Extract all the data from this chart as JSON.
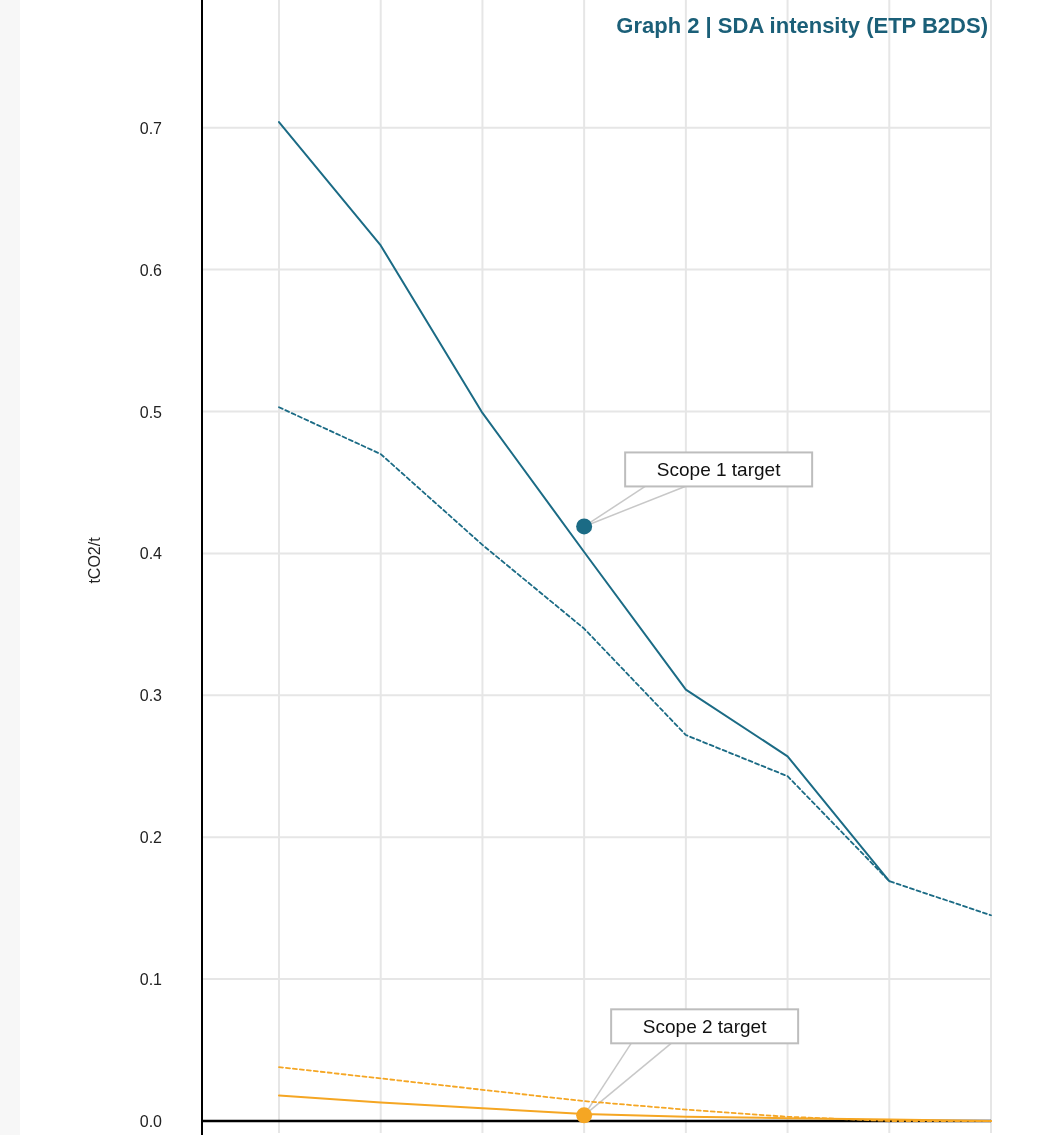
{
  "chart_data": {
    "type": "line",
    "title": "Graph 2 | SDA intensity (ETP B2DS)",
    "ylabel": "tCO2/t",
    "categories": [
      null,
      null,
      null,
      null,
      null,
      null,
      null,
      null
    ],
    "ylim": [
      0,
      0.79
    ],
    "yticks": [
      {
        "value": 0,
        "label": "0.0"
      },
      0.1,
      0.2,
      0.3,
      0.4,
      0.5,
      0.6,
      0.7
    ],
    "grid": true,
    "marker": "none",
    "series": [
      {
        "color": "#1b6b85",
        "line_style": "solid",
        "values": [
          0.704,
          0.617,
          0.499,
          0.401,
          0.304,
          0.257,
          0.169,
          null
        ]
      },
      {
        "color": "#1b6b85",
        "line_style": "dashed",
        "values": [
          0.503,
          0.47,
          0.406,
          0.347,
          0.272,
          0.243,
          0.169,
          0.145
        ]
      },
      {
        "color": "#f5a623",
        "line_style": "solid",
        "values": [
          0.018,
          0.013,
          0.009,
          0.005,
          0.003,
          0.002,
          0.001,
          0
        ]
      },
      {
        "color": "#f5a623",
        "line_style": "dashed",
        "values": [
          0.038,
          0.03,
          0.022,
          0.014,
          0.008,
          0.003,
          0,
          0
        ]
      },
      {
        "type": "scatter",
        "marker": "circle",
        "color": "#1b6b85",
        "values": [
          null,
          null,
          null,
          0.419,
          null,
          null,
          null,
          null
        ]
      },
      {
        "type": "scatter",
        "marker": "circle",
        "color": "#f5a623",
        "values": [
          null,
          null,
          null,
          0.004,
          null,
          null,
          null,
          null
        ]
      }
    ],
    "annotations": [
      "Scope 1 target",
      "Scope 2 target"
    ]
  }
}
